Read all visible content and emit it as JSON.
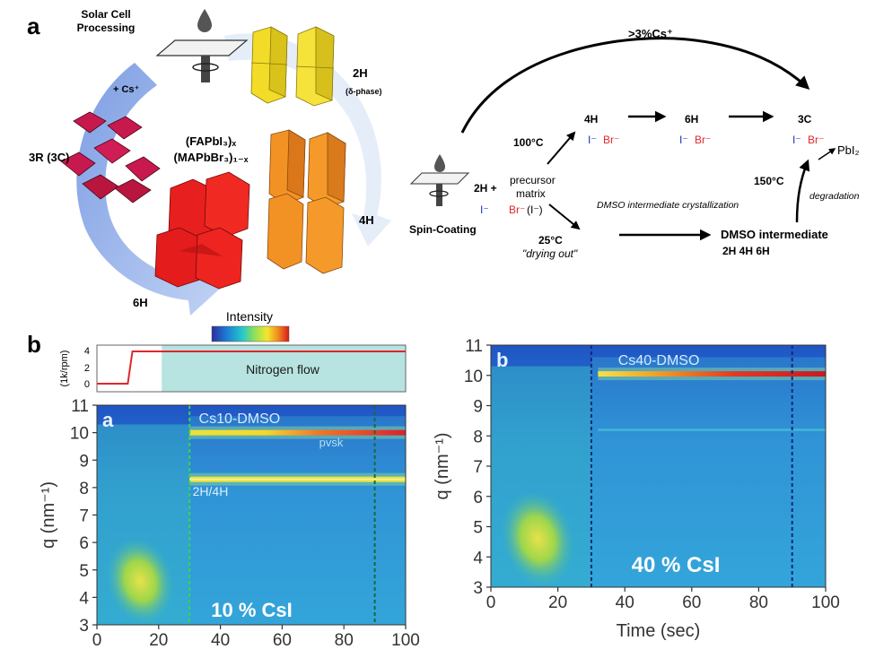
{
  "panel_labels": {
    "a": "a",
    "b": "b"
  },
  "top_left": {
    "solar_cell_processing": [
      "Solar Cell",
      "Processing"
    ],
    "plus_cs": "+ Cs⁺",
    "formula_line1": "(FAPbI₃)ₓ",
    "formula_line2": "(MAPbBr₃)₁₋ₓ",
    "phase_2h": "2H",
    "phase_2h_note": "(δ-phase)",
    "phase_4h": "4H",
    "phase_6h": "6H",
    "phase_3r": "3R (3C)"
  },
  "scheme": {
    "cs_label": ">3%Cs⁺",
    "spin_coating": "Spin-Coating",
    "start_2h": "2H +",
    "start_iodide": "I⁻",
    "precursor": [
      "precursor",
      "matrix"
    ],
    "precursor_ions_br": "Br⁻",
    "precursor_ions_i": "(I⁻)",
    "t100": "100°C",
    "t25": "25°C",
    "drying": "\"drying out\"",
    "dmso_note": "DMSO intermediate crystallization",
    "node_4h": "4H",
    "node_6h": "6H",
    "node_3c": "3C",
    "ion_i": "I⁻",
    "ion_br": "Br⁻",
    "pbi2": "PbI₂",
    "t150": "150°C",
    "degradation": "degradation",
    "dmso_intermediate": "DMSO intermediate",
    "dmso_phases": "2H  4H  6H"
  },
  "colorbar": {
    "label": "Intensity"
  },
  "spin_profile": {
    "ylabel": "(1k/rpm)",
    "yticks": [
      "4",
      "2",
      "0"
    ],
    "nitrogen_flow": "Nitrogen flow",
    "profile_color": "#e0262b",
    "nitrogen_color": "#b7e3e0"
  },
  "chart_data": [
    {
      "type": "heatmap",
      "inset_label": "a",
      "title": "Cs10-DMSO",
      "ylabel": "q (nm⁻¹)",
      "xlabel": "",
      "x_range": [
        0,
        100
      ],
      "y_range": [
        3,
        11
      ],
      "x_ticks": [
        0,
        20,
        40,
        60,
        80,
        100
      ],
      "y_ticks": [
        3,
        4,
        5,
        6,
        7,
        8,
        9,
        10,
        11
      ],
      "annotations": [
        "pvsk",
        "2H/4H"
      ],
      "overlay_text": "10 % CsI",
      "vertical_lines_sec": [
        30,
        90
      ],
      "features": [
        {
          "name": "pvsk",
          "q": 10.0,
          "t_start": 30,
          "t_end": 100
        },
        {
          "name": "2H/4H",
          "q": 8.3,
          "t_start": 30,
          "t_end": 100
        }
      ]
    },
    {
      "type": "heatmap",
      "inset_label": "b",
      "title": "Cs40-DMSO",
      "ylabel": "q (nm⁻¹)",
      "xlabel": "Time (sec)",
      "x_range": [
        0,
        100
      ],
      "y_range": [
        3,
        11
      ],
      "x_ticks": [
        0,
        20,
        40,
        60,
        80,
        100
      ],
      "y_ticks": [
        3,
        4,
        5,
        6,
        7,
        8,
        9,
        10,
        11
      ],
      "annotations": [],
      "overlay_text": "40 % CsI",
      "vertical_lines_sec": [
        30,
        90
      ],
      "features": [
        {
          "name": "",
          "q": 10.05,
          "t_start": 32,
          "t_end": 100
        }
      ]
    }
  ]
}
